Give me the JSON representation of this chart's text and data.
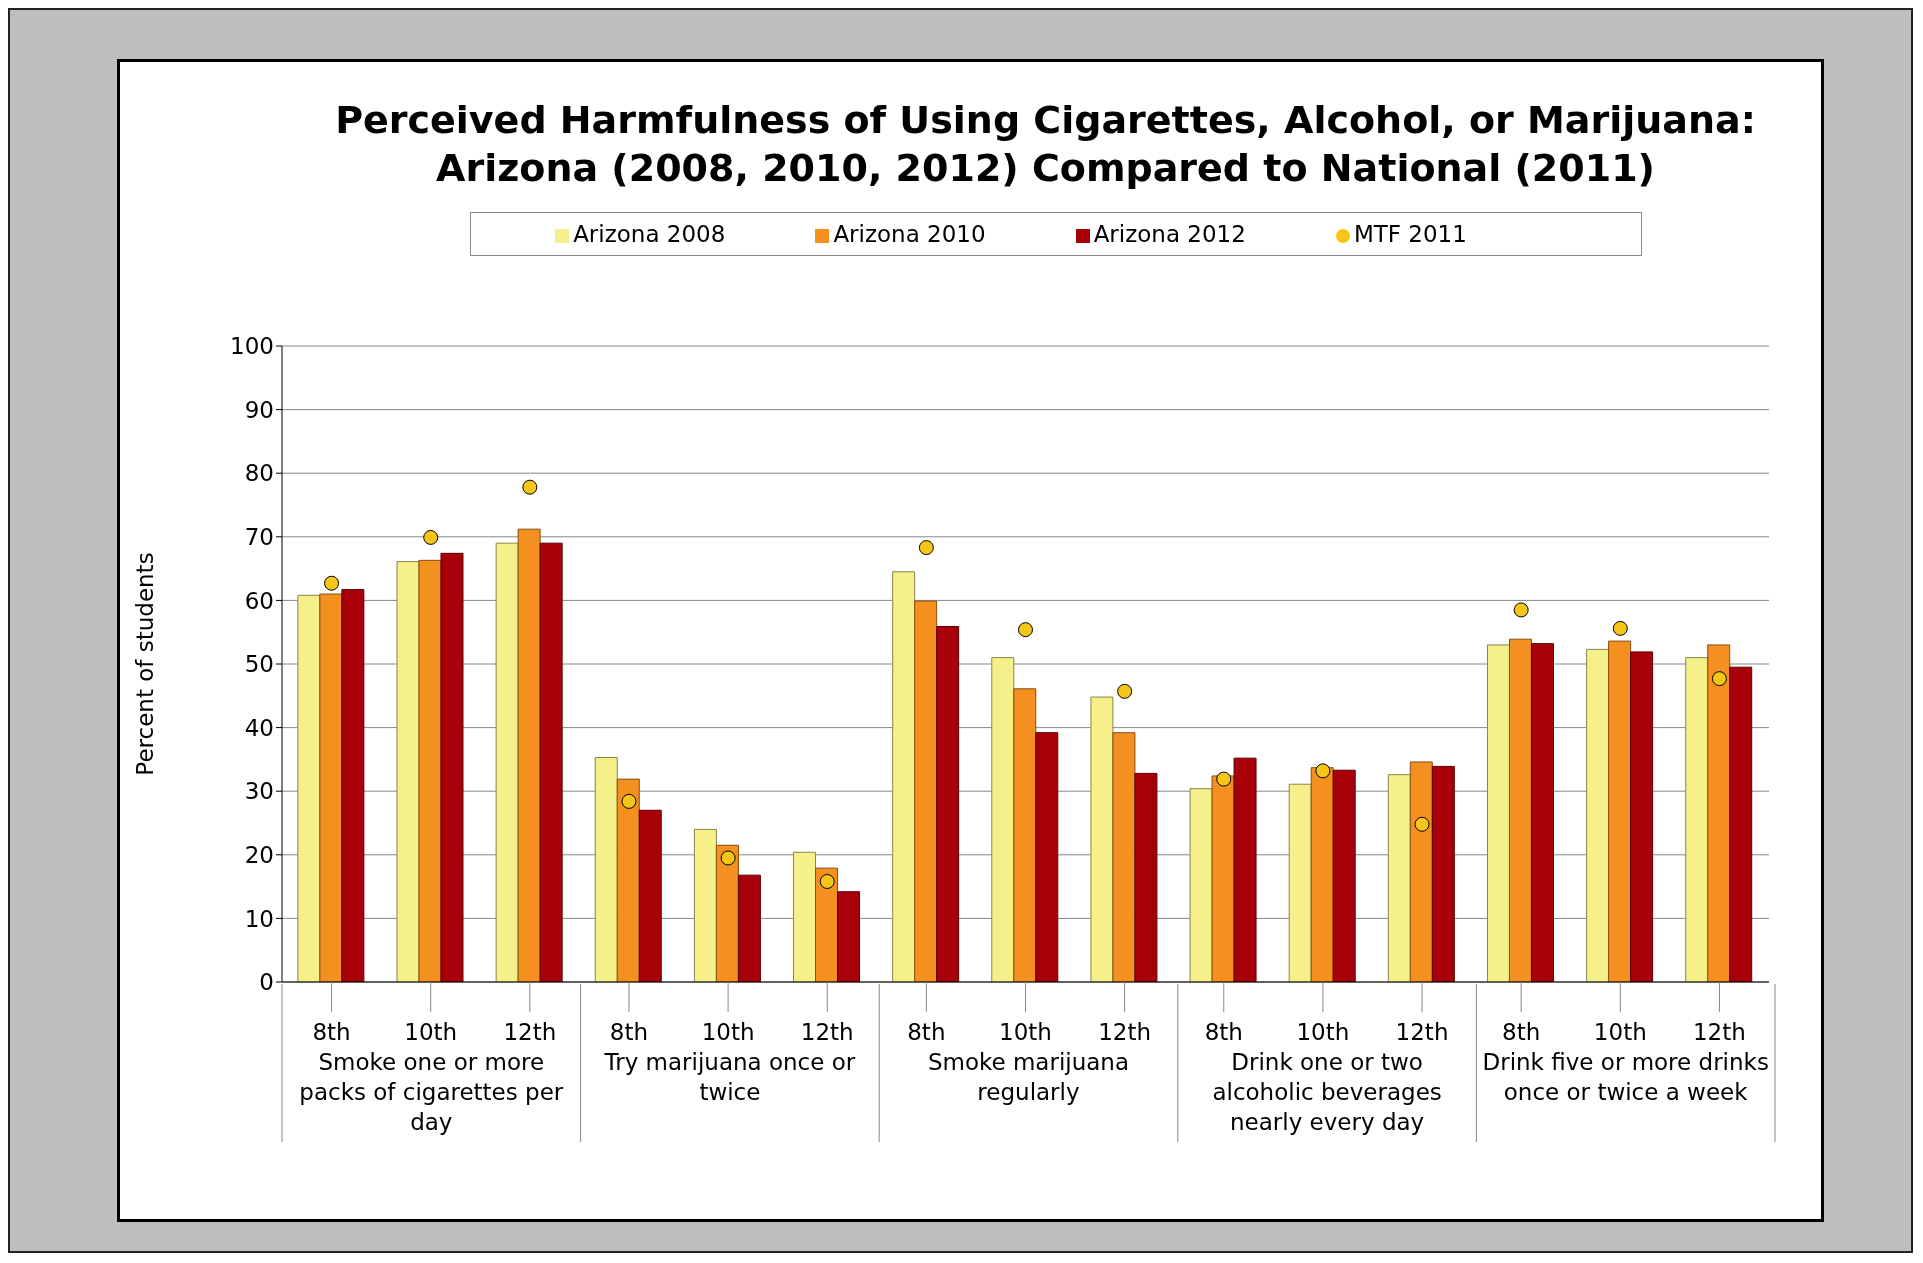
{
  "chart_data": {
    "type": "bar",
    "title": "Perceived Harmfulness of Using Cigarettes, Alcohol, or Marijuana:\nArizona (2008, 2010, 2012) Compared to National (2011)",
    "ylabel": "Percent of students",
    "categories": [
      "8th",
      "10th",
      "12th",
      "8th",
      "10th",
      "12th",
      "8th",
      "10th",
      "12th",
      "8th",
      "10th",
      "12th",
      "8th",
      "10th",
      "12th"
    ],
    "annotations": [
      "Smoke one or more packs of cigarettes per day",
      "Try marijuana once or twice",
      "Smoke marijuana regularly",
      "Drink one or two alcoholic beverages nearly every day",
      "Drink five or more drinks once or twice a week"
    ],
    "series": [
      {
        "name": "Arizona 2008",
        "color": "#f5f08a",
        "values": [
          60.8,
          66.1,
          69.0,
          35.3,
          24.0,
          20.4,
          64.5,
          51.0,
          44.8,
          30.4,
          31.1,
          32.6,
          53.0,
          52.3,
          51.0
        ]
      },
      {
        "name": "Arizona 2010",
        "color": "#f39020",
        "values": [
          61.0,
          66.3,
          71.2,
          31.9,
          21.5,
          17.9,
          59.9,
          46.1,
          39.2,
          32.4,
          33.7,
          34.6,
          53.9,
          53.6,
          53.0
        ]
      },
      {
        "name": "Arizona 2012",
        "color": "#a80008",
        "values": [
          61.7,
          67.4,
          69.0,
          27.0,
          16.8,
          14.2,
          55.9,
          39.2,
          32.8,
          35.2,
          33.3,
          33.9,
          53.2,
          51.9,
          49.5
        ]
      },
      {
        "name": "MTF 2011",
        "type": "scatter",
        "color": "#f5c518",
        "values": [
          62.7,
          69.9,
          77.8,
          28.4,
          19.5,
          15.8,
          68.3,
          55.4,
          45.7,
          31.9,
          33.2,
          24.8,
          58.5,
          55.6,
          47.7
        ]
      }
    ],
    "ylim": [
      0,
      100
    ],
    "yticks": [
      0,
      10,
      20,
      30,
      40,
      50,
      60,
      70,
      80,
      90,
      100
    ],
    "grid": "y",
    "legend": "top",
    "marker": "circle"
  }
}
